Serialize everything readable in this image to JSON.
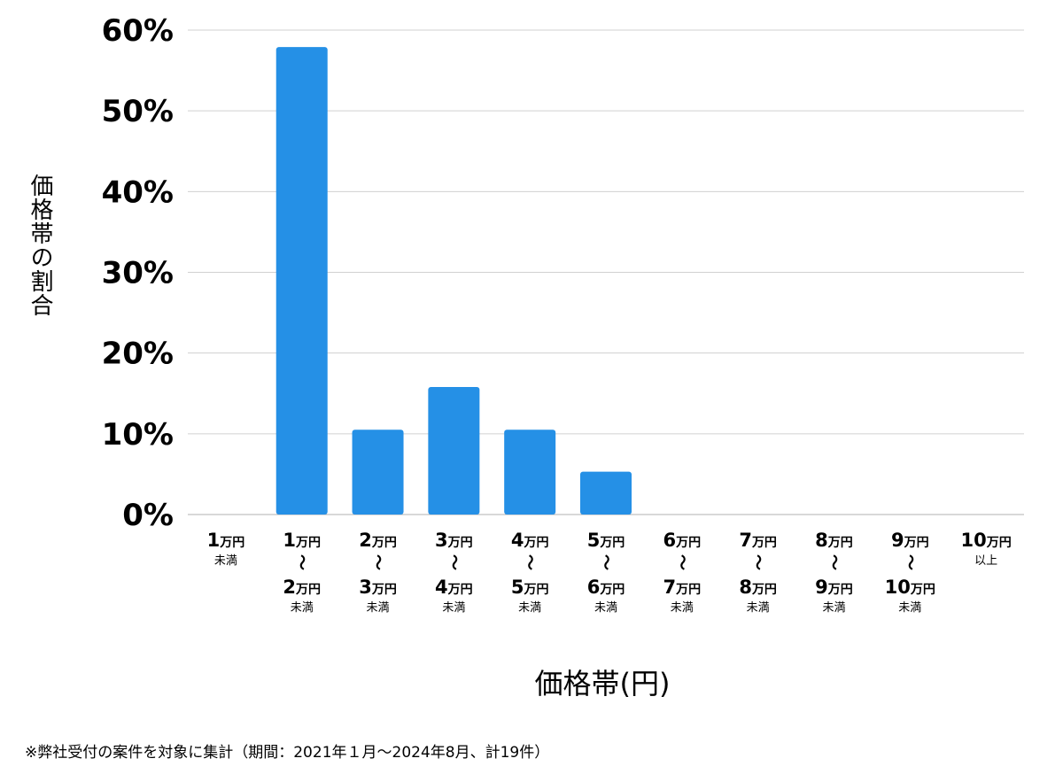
{
  "chart_data": {
    "type": "bar",
    "title": "",
    "ylabel": "価格帯の割合",
    "xlabel": "価格帯(円)",
    "ylim": [
      0,
      60
    ],
    "yticks": [
      "0%",
      "10%",
      "20%",
      "30%",
      "40%",
      "50%",
      "60%"
    ],
    "grid": true,
    "bar_color": "#2590e6",
    "categories": [
      {
        "lines": [
          {
            "num": "1",
            "unit": "万円"
          }
        ],
        "suffix": "未満"
      },
      {
        "lines": [
          {
            "num": "1",
            "unit": "万円"
          },
          {
            "num": "2",
            "unit": "万円"
          }
        ],
        "tilde": "〜",
        "suffix": "未満"
      },
      {
        "lines": [
          {
            "num": "2",
            "unit": "万円"
          },
          {
            "num": "3",
            "unit": "万円"
          }
        ],
        "tilde": "〜",
        "suffix": "未満"
      },
      {
        "lines": [
          {
            "num": "3",
            "unit": "万円"
          },
          {
            "num": "4",
            "unit": "万円"
          }
        ],
        "tilde": "〜",
        "suffix": "未満"
      },
      {
        "lines": [
          {
            "num": "4",
            "unit": "万円"
          },
          {
            "num": "5",
            "unit": "万円"
          }
        ],
        "tilde": "〜",
        "suffix": "未満"
      },
      {
        "lines": [
          {
            "num": "5",
            "unit": "万円"
          },
          {
            "num": "6",
            "unit": "万円"
          }
        ],
        "tilde": "〜",
        "suffix": "未満"
      },
      {
        "lines": [
          {
            "num": "6",
            "unit": "万円"
          },
          {
            "num": "7",
            "unit": "万円"
          }
        ],
        "tilde": "〜",
        "suffix": "未満"
      },
      {
        "lines": [
          {
            "num": "7",
            "unit": "万円"
          },
          {
            "num": "8",
            "unit": "万円"
          }
        ],
        "tilde": "〜",
        "suffix": "未満"
      },
      {
        "lines": [
          {
            "num": "8",
            "unit": "万円"
          },
          {
            "num": "9",
            "unit": "万円"
          }
        ],
        "tilde": "〜",
        "suffix": "未満"
      },
      {
        "lines": [
          {
            "num": "9",
            "unit": "万円"
          },
          {
            "num": "10",
            "unit": "万円"
          }
        ],
        "tilde": "〜",
        "suffix": "未満"
      },
      {
        "lines": [
          {
            "num": "10",
            "unit": "万円"
          }
        ],
        "suffix": "以上"
      }
    ],
    "values": [
      0,
      57.9,
      10.5,
      15.8,
      10.5,
      5.3,
      0,
      0,
      0,
      0,
      0
    ]
  },
  "footnote": "※弊社受付の案件を対象に集計（期間：2021年１月〜2024年8月、計19件）"
}
